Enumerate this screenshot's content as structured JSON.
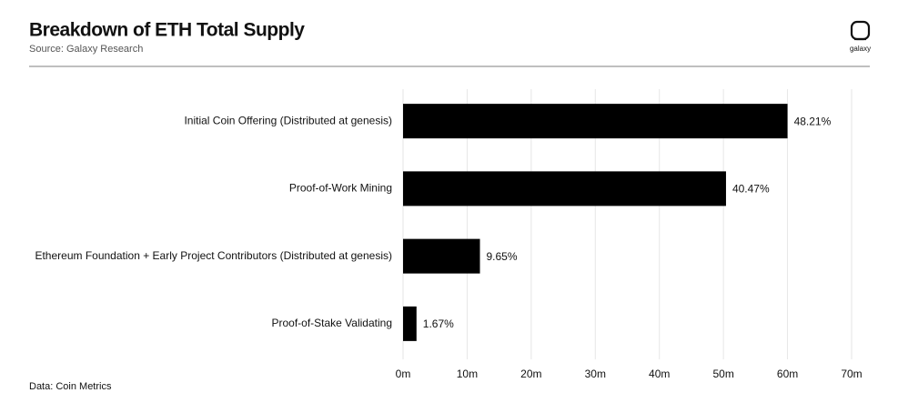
{
  "chart_data": {
    "type": "hbar",
    "title": "Breakdown of ETH Total Supply",
    "subtitle": "Source: Galaxy Research",
    "brand": "galaxy",
    "footnote": "Data: Coin Metrics",
    "categories": [
      "Initial Coin Offering (Distributed at genesis)",
      "Proof-of-Work Mining",
      "Ethereum Foundation + Early Project Contributors (Distributed at genesis)",
      "Proof-of-Stake Validating"
    ],
    "values": [
      60.0,
      50.4,
      12.0,
      2.1
    ],
    "bar_labels": [
      "48.21%",
      "40.47%",
      "9.65%",
      "1.67%"
    ],
    "color": "#000000",
    "xlim": [
      0,
      70
    ],
    "xticks": [
      {
        "value": 0,
        "label": "0m"
      },
      {
        "value": 10,
        "label": "10m"
      },
      {
        "value": 20,
        "label": "20m"
      },
      {
        "value": 30,
        "label": "30m"
      },
      {
        "value": 40,
        "label": "40m"
      },
      {
        "value": 50,
        "label": "50m"
      },
      {
        "value": 60,
        "label": "60m"
      },
      {
        "value": 70,
        "label": "70m"
      }
    ],
    "grid": true
  }
}
